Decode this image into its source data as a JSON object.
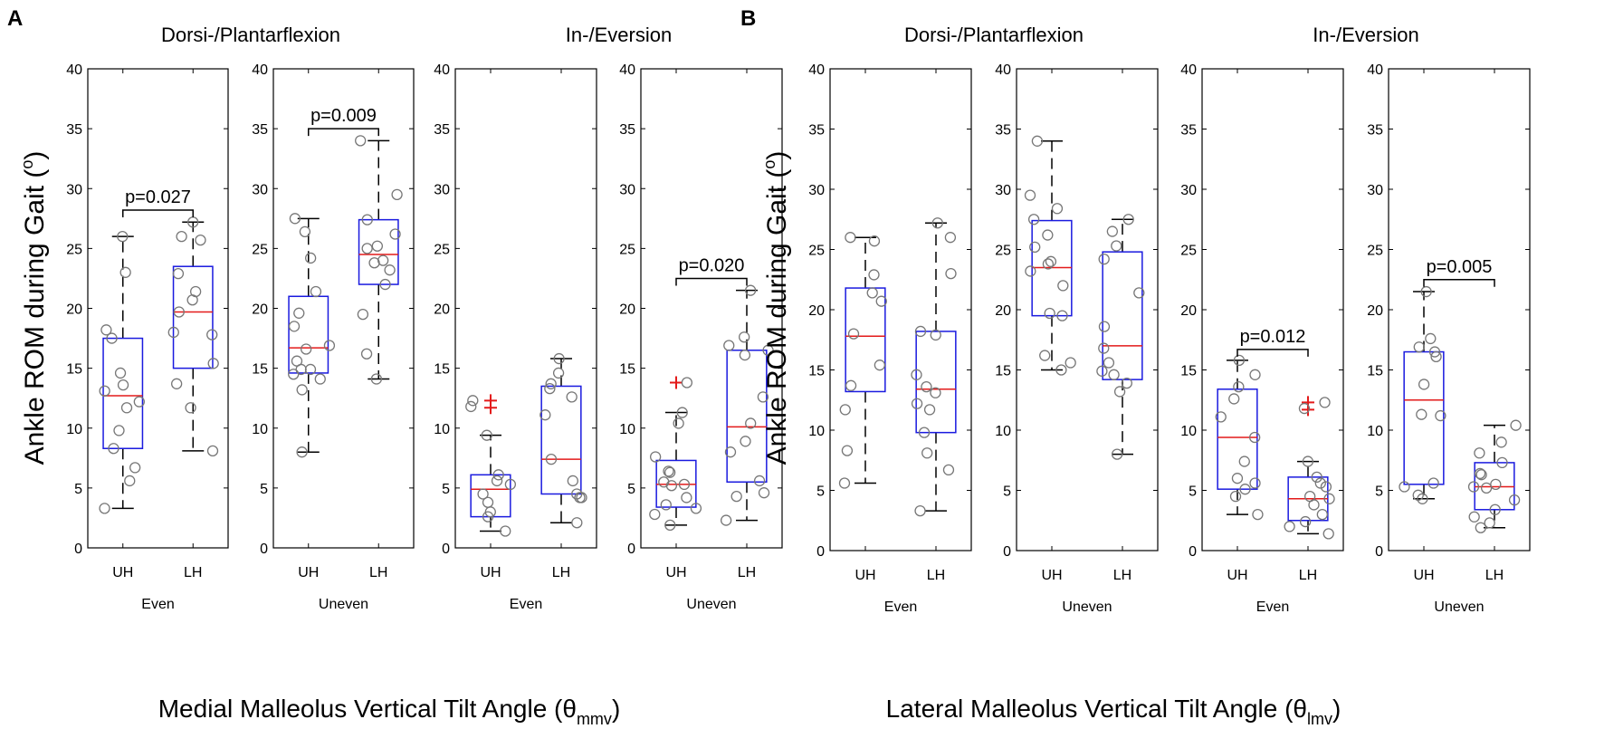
{
  "chart_data": {
    "type": "box",
    "ylabel": {
      "text": "Ankle ROM during Gait (",
      "sup": "o",
      "close": ")"
    },
    "ylim": [
      0,
      40
    ],
    "yticks": [
      0,
      5,
      10,
      15,
      20,
      25,
      30,
      35,
      40
    ],
    "colors": {
      "box": "#1a1adf",
      "median": "#e31a1a",
      "outlier": "#e31a1a",
      "point": "#777777",
      "axis": "#000000"
    },
    "panels": [
      {
        "letter": "A",
        "xlabel": {
          "text": "Medial Malleolus Vertical Tilt Angle (θ",
          "sub": "mmv",
          "close": ")"
        },
        "groups": [
          {
            "title": "Dorsi-/Plantarflexion",
            "subplots": [
              0,
              1
            ]
          },
          {
            "title": "In-/Eversion",
            "subplots": [
              2,
              3
            ]
          }
        ],
        "subplots": [
          {
            "condition": "Even",
            "pvalue": "p=0.027",
            "p_level": 28.2,
            "boxes": [
              {
                "label": "UH",
                "low": 3.3,
                "q1": 8.3,
                "median": 12.7,
                "q3": 17.5,
                "high": 26,
                "outliers": [],
                "points": [
                  26,
                  23,
                  18.2,
                  17.5,
                  14.6,
                  13.6,
                  13.1,
                  12.2,
                  11.7,
                  9.8,
                  8.3,
                  6.7,
                  5.6,
                  3.3
                ]
              },
              {
                "label": "LH",
                "low": 8.1,
                "q1": 15,
                "median": 19.7,
                "q3": 23.5,
                "high": 27.2,
                "outliers": [],
                "points": [
                  27.2,
                  26,
                  25.7,
                  22.9,
                  21.4,
                  20.7,
                  19.7,
                  18,
                  17.8,
                  15.4,
                  13.7,
                  11.7,
                  8.1
                ]
              }
            ]
          },
          {
            "condition": "Uneven",
            "pvalue": "p=0.009",
            "p_level": 35,
            "boxes": [
              {
                "label": "UH",
                "low": 8,
                "q1": 14.6,
                "median": 16.7,
                "q3": 21,
                "high": 27.5,
                "outliers": [],
                "points": [
                  27.5,
                  26.4,
                  24.2,
                  21.4,
                  19.6,
                  18.5,
                  16.9,
                  16.6,
                  15.6,
                  14.9,
                  14.9,
                  14.5,
                  14.1,
                  13.2,
                  8
                ]
              },
              {
                "label": "LH",
                "low": 14.1,
                "q1": 22,
                "median": 24.5,
                "q3": 27.4,
                "high": 34,
                "outliers": [],
                "points": [
                  34,
                  29.5,
                  27.4,
                  26.2,
                  25.2,
                  25,
                  24,
                  23.8,
                  23.2,
                  22,
                  19.5,
                  16.2,
                  14.1
                ]
              }
            ]
          },
          {
            "condition": "Even",
            "pvalue": null,
            "p_level": null,
            "boxes": [
              {
                "label": "UH",
                "low": 1.4,
                "q1": 2.6,
                "median": 4.9,
                "q3": 6.1,
                "high": 9.4,
                "outliers": [
                  12.3,
                  11.7
                ],
                "points": [
                  12.3,
                  11.8,
                  9.4,
                  6.1,
                  5.6,
                  5.3,
                  4.5,
                  3.8,
                  3.0,
                  2.6,
                  1.4
                ]
              },
              {
                "label": "LH",
                "low": 2.1,
                "q1": 4.5,
                "median": 7.4,
                "q3": 13.5,
                "high": 15.8,
                "outliers": [],
                "points": [
                  15.8,
                  14.6,
                  13.7,
                  13.3,
                  12.6,
                  11.1,
                  7.4,
                  5.6,
                  4.5,
                  4.2,
                  4.2,
                  2.1
                ]
              }
            ]
          },
          {
            "condition": "Uneven",
            "pvalue": "p=0.020",
            "p_level": 22.5,
            "boxes": [
              {
                "label": "UH",
                "low": 1.9,
                "q1": 3.4,
                "median": 5.3,
                "q3": 7.3,
                "high": 11.3,
                "outliers": [
                  13.8
                ],
                "points": [
                  13.8,
                  11.3,
                  10.4,
                  7.6,
                  6.4,
                  6.3,
                  5.5,
                  5.2,
                  5.3,
                  4.2,
                  3.6,
                  3.3,
                  2.8,
                  1.9
                ]
              },
              {
                "label": "LH",
                "low": 2.3,
                "q1": 5.5,
                "median": 10.1,
                "q3": 16.5,
                "high": 21.5,
                "outliers": [],
                "points": [
                  21.5,
                  17.6,
                  16.9,
                  16.5,
                  16.1,
                  12.6,
                  10.4,
                  8.9,
                  8.0,
                  5.6,
                  4.6,
                  4.3,
                  2.3
                ]
              }
            ]
          }
        ]
      },
      {
        "letter": "B",
        "xlabel": {
          "text": "Lateral Malleolus Vertical Tilt Angle (θ",
          "sub": "lmv",
          "close": ")"
        },
        "groups": [
          {
            "title": "Dorsi-/Plantarflexion",
            "subplots": [
              0,
              1
            ]
          },
          {
            "title": "In-/Eversion",
            "subplots": [
              2,
              3
            ]
          }
        ],
        "subplots": [
          {
            "condition": "Even",
            "pvalue": null,
            "p_level": null,
            "boxes": [
              {
                "label": "UH",
                "low": 5.6,
                "q1": 13.2,
                "median": 17.8,
                "q3": 21.8,
                "high": 26,
                "outliers": [],
                "points": [
                  26,
                  25.7,
                  22.9,
                  21.4,
                  20.7,
                  18,
                  15.4,
                  13.7,
                  11.7,
                  8.3,
                  5.6
                ]
              },
              {
                "label": "LH",
                "low": 3.3,
                "q1": 9.8,
                "median": 13.4,
                "q3": 18.2,
                "high": 27.2,
                "outliers": [],
                "points": [
                  27.2,
                  26,
                  23,
                  18.2,
                  17.9,
                  14.6,
                  13.6,
                  13.1,
                  12.2,
                  11.7,
                  9.8,
                  8.1,
                  6.7,
                  3.3
                ]
              }
            ]
          },
          {
            "condition": "Uneven",
            "pvalue": null,
            "p_level": null,
            "boxes": [
              {
                "label": "UH",
                "low": 15,
                "q1": 19.5,
                "median": 23.5,
                "q3": 27.4,
                "high": 34,
                "outliers": [],
                "points": [
                  34,
                  29.5,
                  28.4,
                  27.5,
                  26.2,
                  25.2,
                  24,
                  23.8,
                  23.2,
                  22,
                  19.7,
                  19.5,
                  16.2,
                  15.6,
                  15
                ]
              },
              {
                "label": "LH",
                "low": 8,
                "q1": 14.2,
                "median": 17,
                "q3": 24.8,
                "high": 27.5,
                "outliers": [],
                "points": [
                  27.5,
                  26.5,
                  25.3,
                  24.2,
                  21.4,
                  18.6,
                  16.8,
                  15.6,
                  14.6,
                  14.9,
                  13.9,
                  13.2,
                  8
                ]
              }
            ]
          },
          {
            "condition": "Even",
            "pvalue": "p=0.012",
            "p_level": 16.7,
            "boxes": [
              {
                "label": "UH",
                "low": 3,
                "q1": 5.1,
                "median": 9.4,
                "q3": 13.4,
                "high": 15.8,
                "outliers": [],
                "points": [
                  15.8,
                  14.6,
                  13.6,
                  12.6,
                  11.1,
                  9.4,
                  7.4,
                  6,
                  5.6,
                  5.1,
                  4.5,
                  3
                ]
              },
              {
                "label": "LH",
                "low": 1.4,
                "q1": 2.5,
                "median": 4.3,
                "q3": 6.1,
                "high": 7.4,
                "outliers": [
                  12.3,
                  11.7
                ],
                "points": [
                  12.3,
                  11.8,
                  7.4,
                  6.1,
                  5.6,
                  5.3,
                  4.5,
                  4.3,
                  3.8,
                  3.0,
                  2.4,
                  2.0,
                  1.4
                ]
              }
            ]
          },
          {
            "condition": "Uneven",
            "pvalue": "p=0.005",
            "p_level": 22.5,
            "boxes": [
              {
                "label": "UH",
                "low": 4.3,
                "q1": 5.5,
                "median": 12.5,
                "q3": 16.5,
                "high": 21.5,
                "outliers": [],
                "points": [
                  21.5,
                  17.6,
                  16.9,
                  16.5,
                  16.1,
                  13.8,
                  11.3,
                  11.2,
                  5.6,
                  5.3,
                  4.6,
                  4.3
                ]
              },
              {
                "label": "LH",
                "low": 1.9,
                "q1": 3.4,
                "median": 5.3,
                "q3": 7.3,
                "high": 10.4,
                "outliers": [],
                "points": [
                  10.4,
                  9.0,
                  8.1,
                  7.3,
                  6.4,
                  6.3,
                  5.5,
                  5.2,
                  5.3,
                  4.2,
                  3.4,
                  2.8,
                  2.3,
                  1.9
                ]
              }
            ]
          }
        ]
      }
    ]
  }
}
